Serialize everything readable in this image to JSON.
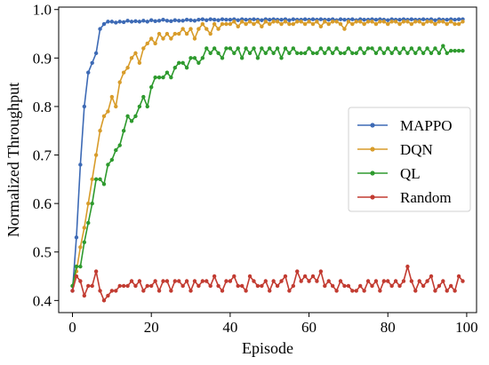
{
  "chart_data": {
    "type": "line",
    "title": "",
    "xlabel": "Episode",
    "ylabel": "Normalized Throughput",
    "xlim": [
      -3.5,
      102.5
    ],
    "ylim": [
      0.375,
      1.005
    ],
    "xticks": [
      0,
      20,
      40,
      60,
      80,
      100
    ],
    "yticks": [
      0.4,
      0.5,
      0.6,
      0.7,
      0.8,
      0.9,
      1.0
    ],
    "xtick_labels": [
      "0",
      "20",
      "40",
      "60",
      "80",
      "100"
    ],
    "ytick_labels": [
      "0.4",
      "0.5",
      "0.6",
      "0.7",
      "0.8",
      "0.9",
      "1.0"
    ],
    "grid": false,
    "legend_position": "center-right",
    "x": [
      0,
      1,
      2,
      3,
      4,
      5,
      6,
      7,
      8,
      9,
      10,
      11,
      12,
      13,
      14,
      15,
      16,
      17,
      18,
      19,
      20,
      21,
      22,
      23,
      24,
      25,
      26,
      27,
      28,
      29,
      30,
      31,
      32,
      33,
      34,
      35,
      36,
      37,
      38,
      39,
      40,
      41,
      42,
      43,
      44,
      45,
      46,
      47,
      48,
      49,
      50,
      51,
      52,
      53,
      54,
      55,
      56,
      57,
      58,
      59,
      60,
      61,
      62,
      63,
      64,
      65,
      66,
      67,
      68,
      69,
      70,
      71,
      72,
      73,
      74,
      75,
      76,
      77,
      78,
      79,
      80,
      81,
      82,
      83,
      84,
      85,
      86,
      87,
      88,
      89,
      90,
      91,
      92,
      93,
      94,
      95,
      96,
      97,
      98,
      99
    ],
    "series": [
      {
        "name": "MAPPO",
        "color": "#3d6ab5",
        "values": [
          0.42,
          0.53,
          0.68,
          0.8,
          0.87,
          0.89,
          0.91,
          0.96,
          0.97,
          0.975,
          0.975,
          0.973,
          0.975,
          0.974,
          0.977,
          0.975,
          0.976,
          0.975,
          0.977,
          0.975,
          0.978,
          0.976,
          0.977,
          0.979,
          0.977,
          0.976,
          0.978,
          0.977,
          0.977,
          0.979,
          0.978,
          0.977,
          0.979,
          0.98,
          0.978,
          0.98,
          0.979,
          0.978,
          0.98,
          0.979,
          0.979,
          0.98,
          0.978,
          0.98,
          0.979,
          0.979,
          0.98,
          0.979,
          0.978,
          0.98,
          0.979,
          0.98,
          0.979,
          0.979,
          0.98,
          0.978,
          0.98,
          0.979,
          0.979,
          0.98,
          0.979,
          0.98,
          0.979,
          0.98,
          0.979,
          0.979,
          0.98,
          0.978,
          0.98,
          0.979,
          0.979,
          0.98,
          0.978,
          0.98,
          0.979,
          0.979,
          0.98,
          0.979,
          0.98,
          0.979,
          0.978,
          0.98,
          0.979,
          0.979,
          0.98,
          0.979,
          0.98,
          0.979,
          0.979,
          0.98,
          0.979,
          0.98,
          0.978,
          0.98,
          0.979,
          0.979,
          0.98,
          0.979,
          0.98,
          0.98
        ]
      },
      {
        "name": "DQN",
        "color": "#d89c2a",
        "values": [
          0.43,
          0.46,
          0.51,
          0.55,
          0.6,
          0.65,
          0.7,
          0.75,
          0.78,
          0.79,
          0.82,
          0.8,
          0.85,
          0.87,
          0.88,
          0.9,
          0.91,
          0.89,
          0.92,
          0.93,
          0.94,
          0.93,
          0.95,
          0.94,
          0.95,
          0.94,
          0.95,
          0.95,
          0.96,
          0.95,
          0.96,
          0.94,
          0.96,
          0.97,
          0.96,
          0.95,
          0.97,
          0.96,
          0.97,
          0.97,
          0.97,
          0.975,
          0.965,
          0.975,
          0.97,
          0.975,
          0.97,
          0.975,
          0.965,
          0.975,
          0.97,
          0.975,
          0.975,
          0.97,
          0.975,
          0.97,
          0.97,
          0.975,
          0.975,
          0.97,
          0.975,
          0.97,
          0.975,
          0.965,
          0.975,
          0.97,
          0.975,
          0.975,
          0.97,
          0.96,
          0.975,
          0.97,
          0.975,
          0.975,
          0.97,
          0.975,
          0.975,
          0.97,
          0.975,
          0.975,
          0.97,
          0.975,
          0.975,
          0.97,
          0.975,
          0.975,
          0.97,
          0.975,
          0.975,
          0.97,
          0.975,
          0.975,
          0.97,
          0.975,
          0.975,
          0.97,
          0.975,
          0.97,
          0.97,
          0.975
        ]
      },
      {
        "name": "QL",
        "color": "#2e9a2e",
        "values": [
          0.43,
          0.47,
          0.47,
          0.52,
          0.56,
          0.6,
          0.65,
          0.65,
          0.64,
          0.68,
          0.69,
          0.71,
          0.72,
          0.75,
          0.78,
          0.77,
          0.78,
          0.8,
          0.82,
          0.8,
          0.84,
          0.86,
          0.86,
          0.86,
          0.87,
          0.86,
          0.88,
          0.89,
          0.89,
          0.88,
          0.9,
          0.9,
          0.89,
          0.9,
          0.92,
          0.91,
          0.92,
          0.91,
          0.9,
          0.92,
          0.92,
          0.91,
          0.92,
          0.9,
          0.92,
          0.91,
          0.92,
          0.9,
          0.92,
          0.91,
          0.92,
          0.91,
          0.92,
          0.9,
          0.92,
          0.91,
          0.92,
          0.91,
          0.91,
          0.91,
          0.92,
          0.91,
          0.91,
          0.92,
          0.91,
          0.92,
          0.91,
          0.92,
          0.91,
          0.91,
          0.92,
          0.91,
          0.91,
          0.92,
          0.91,
          0.92,
          0.92,
          0.91,
          0.92,
          0.91,
          0.92,
          0.91,
          0.92,
          0.91,
          0.92,
          0.91,
          0.92,
          0.91,
          0.92,
          0.91,
          0.92,
          0.91,
          0.92,
          0.91,
          0.925,
          0.91,
          0.915,
          0.915,
          0.915,
          0.915
        ]
      },
      {
        "name": "Random",
        "color": "#c23b31",
        "values": [
          0.42,
          0.45,
          0.44,
          0.41,
          0.43,
          0.43,
          0.46,
          0.42,
          0.4,
          0.41,
          0.42,
          0.42,
          0.43,
          0.43,
          0.43,
          0.44,
          0.43,
          0.44,
          0.42,
          0.43,
          0.43,
          0.44,
          0.42,
          0.44,
          0.44,
          0.42,
          0.44,
          0.44,
          0.43,
          0.44,
          0.42,
          0.44,
          0.43,
          0.44,
          0.44,
          0.43,
          0.45,
          0.43,
          0.42,
          0.44,
          0.44,
          0.45,
          0.43,
          0.43,
          0.42,
          0.45,
          0.44,
          0.43,
          0.43,
          0.44,
          0.42,
          0.44,
          0.43,
          0.44,
          0.45,
          0.42,
          0.43,
          0.46,
          0.44,
          0.45,
          0.44,
          0.45,
          0.44,
          0.46,
          0.43,
          0.44,
          0.43,
          0.42,
          0.44,
          0.43,
          0.43,
          0.42,
          0.42,
          0.43,
          0.42,
          0.44,
          0.43,
          0.44,
          0.42,
          0.44,
          0.44,
          0.43,
          0.44,
          0.43,
          0.44,
          0.47,
          0.44,
          0.42,
          0.44,
          0.43,
          0.44,
          0.45,
          0.42,
          0.43,
          0.44,
          0.42,
          0.43,
          0.42,
          0.45,
          0.44
        ]
      }
    ]
  }
}
